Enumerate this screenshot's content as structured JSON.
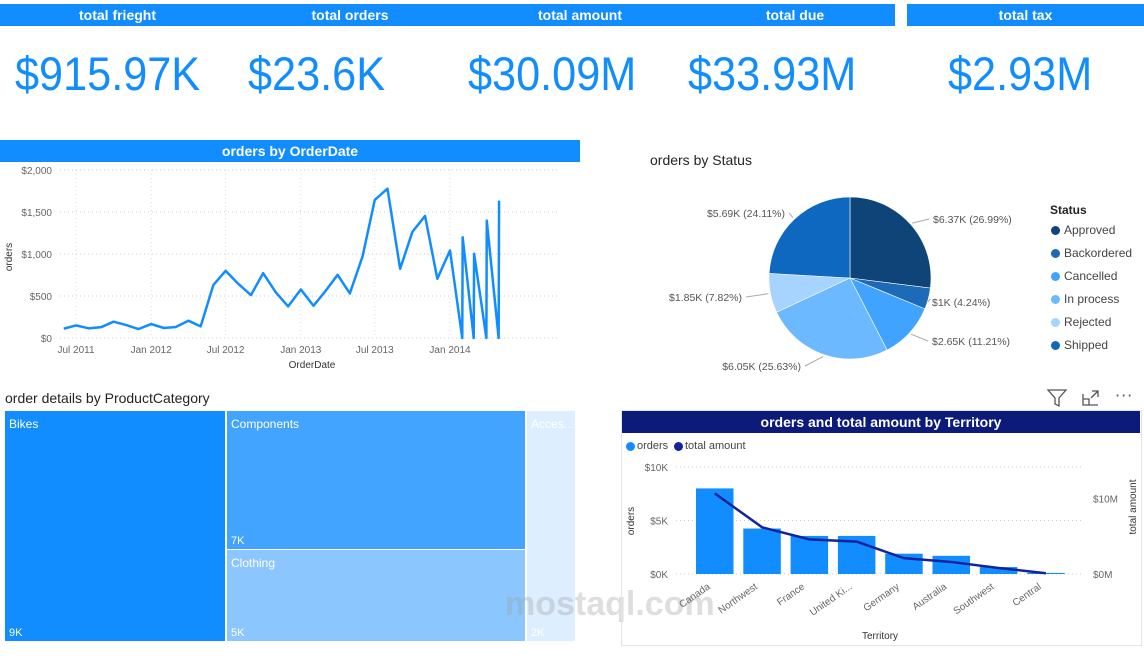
{
  "kpis": [
    {
      "label": "total frieght",
      "value": "$915.97K"
    },
    {
      "label": "total orders",
      "value": "$23.6K"
    },
    {
      "label": "total amount",
      "value": "$30.09M"
    },
    {
      "label": "total due",
      "value": "$33.93M"
    },
    {
      "label": "total tax",
      "value": "$2.93M"
    }
  ],
  "colors": {
    "accent": "#118DFF",
    "navy": "#0C1B7A",
    "line_dark": "#12239E"
  },
  "toolbar_icons": [
    "filter-icon",
    "focus-mode-icon",
    "more-options-icon"
  ],
  "watermark": "mostaql.com",
  "chart_data": [
    {
      "type": "line",
      "title": "orders by OrderDate",
      "xlabel": "OrderDate",
      "ylabel": "orders",
      "ylim": [
        0,
        2000
      ],
      "yticks": [
        "$0",
        "$500",
        "$1,000",
        "$1,500",
        "$2,000"
      ],
      "ytick_values": [
        0,
        500,
        1000,
        1500,
        2000
      ],
      "xticks": [
        "Jul 2011",
        "Jan 2012",
        "Jul 2012",
        "Jan 2013",
        "Jul 2013",
        "Jan 2014"
      ],
      "xtick_dates": [
        "2011-07-01",
        "2012-01-01",
        "2012-07-01",
        "2013-01-01",
        "2013-07-01",
        "2014-01-01"
      ],
      "grid": true,
      "color": "#118DFF",
      "points": [
        [
          "2011-06-01",
          111
        ],
        [
          "2011-07-01",
          150
        ],
        [
          "2011-08-01",
          115
        ],
        [
          "2011-09-01",
          130
        ],
        [
          "2011-10-01",
          194
        ],
        [
          "2011-11-01",
          154
        ],
        [
          "2011-12-01",
          107
        ],
        [
          "2012-01-01",
          166
        ],
        [
          "2012-02-01",
          119
        ],
        [
          "2012-03-01",
          131
        ],
        [
          "2012-04-01",
          206
        ],
        [
          "2012-05-01",
          139
        ],
        [
          "2012-06-01",
          630
        ],
        [
          "2012-07-01",
          800
        ],
        [
          "2012-08-01",
          645
        ],
        [
          "2012-09-01",
          511
        ],
        [
          "2012-10-01",
          772
        ],
        [
          "2012-11-01",
          543
        ],
        [
          "2012-12-01",
          376
        ],
        [
          "2013-01-01",
          578
        ],
        [
          "2013-02-01",
          384
        ],
        [
          "2013-03-01",
          550
        ],
        [
          "2013-04-01",
          752
        ],
        [
          "2013-05-01",
          531
        ],
        [
          "2013-06-01",
          970
        ],
        [
          "2013-07-01",
          1644
        ],
        [
          "2013-08-01",
          1778
        ],
        [
          "2013-09-01",
          824
        ],
        [
          "2013-10-01",
          1263
        ],
        [
          "2013-11-01",
          1453
        ],
        [
          "2013-12-01",
          705
        ],
        [
          "2014-01-01",
          1042
        ],
        [
          "2014-01-31",
          0
        ],
        [
          "2014-02-01",
          1200
        ],
        [
          "2014-02-28",
          0
        ],
        [
          "2014-03-01",
          1002
        ],
        [
          "2014-03-31",
          0
        ],
        [
          "2014-04-01",
          1398
        ],
        [
          "2014-04-30",
          0
        ],
        [
          "2014-05-01",
          1636
        ]
      ]
    },
    {
      "type": "pie",
      "title": "orders by Status",
      "legend_title": "Status",
      "legend_position": "right",
      "slices": [
        {
          "name": "Approved",
          "label": "$6.37K (26.99%)",
          "percent": 26.99,
          "color": "#0E4478"
        },
        {
          "name": "Backordered",
          "label": "$1K (4.24%)",
          "percent": 4.24,
          "color": "#1C6AB8"
        },
        {
          "name": "Cancelled",
          "label": "$2.65K (11.21%)",
          "percent": 11.21,
          "color": "#40A3FF"
        },
        {
          "name": "In process",
          "label": "$6.05K (25.63%)",
          "percent": 25.63,
          "color": "#6DB9FF"
        },
        {
          "name": "Rejected",
          "label": "$1.85K (7.82%)",
          "percent": 7.82,
          "color": "#A6D3FF"
        },
        {
          "name": "Shipped",
          "label": "$5.69K (24.11%)",
          "percent": 24.11,
          "color": "#0E68C0"
        }
      ]
    },
    {
      "type": "treemap",
      "title": "order details by ProductCategory",
      "items": [
        {
          "name": "Bikes",
          "value": "9K",
          "color": "#118DFF"
        },
        {
          "name": "Components",
          "value": "7K",
          "color": "#42A4FF"
        },
        {
          "name": "Clothing",
          "value": "5K",
          "color": "#8BC6FF"
        },
        {
          "name": "Acces...",
          "value": "2K",
          "color": "#DCEEFF"
        }
      ]
    },
    {
      "type": "bar+line",
      "title": "orders and total amount by Territory",
      "xlabel": "Territory",
      "ylabel": "orders",
      "y2label": "total amount",
      "legend": [
        {
          "name": "orders",
          "color": "#118DFF"
        },
        {
          "name": "total amount",
          "color": "#12239E"
        }
      ],
      "legend_position": "top-left",
      "categories": [
        "Canada",
        "Northwest",
        "France",
        "United Ki...",
        "Germany",
        "Australia",
        "Southwest",
        "Central"
      ],
      "orders": [
        8000,
        4250,
        3560,
        3560,
        1900,
        1700,
        650,
        100
      ],
      "total_amount": [
        10700000,
        6200000,
        4600000,
        4300000,
        2100000,
        1600000,
        800000,
        100000
      ],
      "ylim": [
        0,
        10000
      ],
      "yticks": [
        "$0K",
        "$5K",
        "$10K"
      ],
      "ytick_values": [
        0,
        5000,
        10000
      ],
      "y2ticks": [
        "$0M",
        "$10M"
      ],
      "y2tick_values": [
        0,
        10000000
      ],
      "y2lim": [
        0,
        14200000
      ],
      "grid": true
    }
  ]
}
